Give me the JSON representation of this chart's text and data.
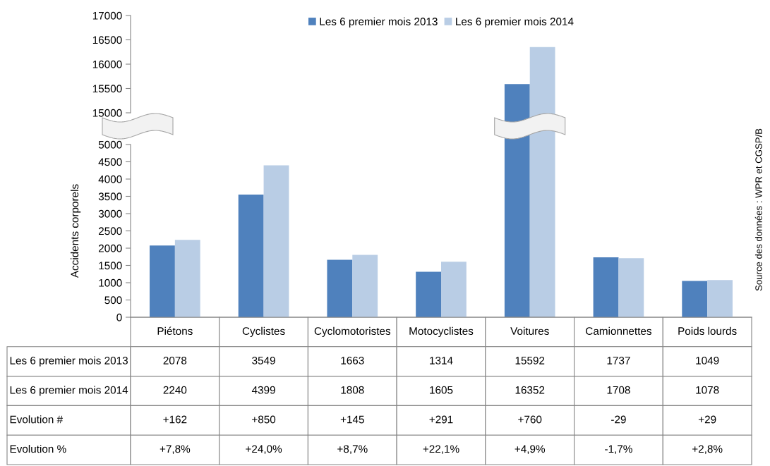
{
  "chart_data": [
    {
      "type": "bar",
      "categories": [
        null,
        null,
        null,
        null,
        null,
        null,
        null
      ],
      "series": [
        {
          "name": "Les 6 premier mois 2013",
          "color": "#4f81bd",
          "values": [
            null,
            null,
            null,
            null,
            15592,
            null,
            null
          ]
        },
        {
          "name": "Les 6 premier mois 2014",
          "color": "#b9cde5",
          "values": [
            null,
            null,
            null,
            null,
            16352,
            null,
            null
          ]
        }
      ],
      "ylim": [
        15000,
        17000
      ],
      "yticks": [
        15000,
        15500,
        16000,
        16500,
        17000
      ],
      "tick_labels": "y",
      "legend": "top"
    },
    {
      "type": "bar",
      "ylabel": "Accidents corporels",
      "categories": [
        "Piétons",
        "Cyclistes",
        "Cyclomotoristes",
        "Motocyclistes",
        "Voitures",
        "Camionnettes",
        "Poids lourds"
      ],
      "series": [
        {
          "color": "#4f81bd",
          "values": [
            2078,
            3549,
            1663,
            1314,
            null,
            1737,
            1049
          ],
          "value_labels": [
            "2078",
            "3549",
            "1663",
            "1314",
            "15592",
            "1737",
            "1049"
          ]
        },
        {
          "color": "#b9cde5",
          "values": [
            2240,
            4399,
            1808,
            1605,
            null,
            1708,
            1078
          ],
          "value_labels": [
            "2240",
            "4399",
            "1808",
            "1605",
            "16352",
            "1708",
            "1078"
          ]
        }
      ],
      "ylim": [
        0,
        5000
      ],
      "yticks": [
        0,
        500,
        1000,
        1500,
        2000,
        2500,
        3000,
        3500,
        4000,
        4500,
        5000
      ],
      "annotations": [
        "Evolution #",
        "+162",
        "+850",
        "+145",
        "+291",
        "+760",
        "-29",
        "+29",
        "Evolution %",
        "+7,8%",
        "+24,0%",
        "+8,7%",
        "+22,1%",
        "+4,9%",
        "-1,7%",
        "+2,8%",
        "Source des données : WPR et CGSP/B"
      ]
    }
  ]
}
